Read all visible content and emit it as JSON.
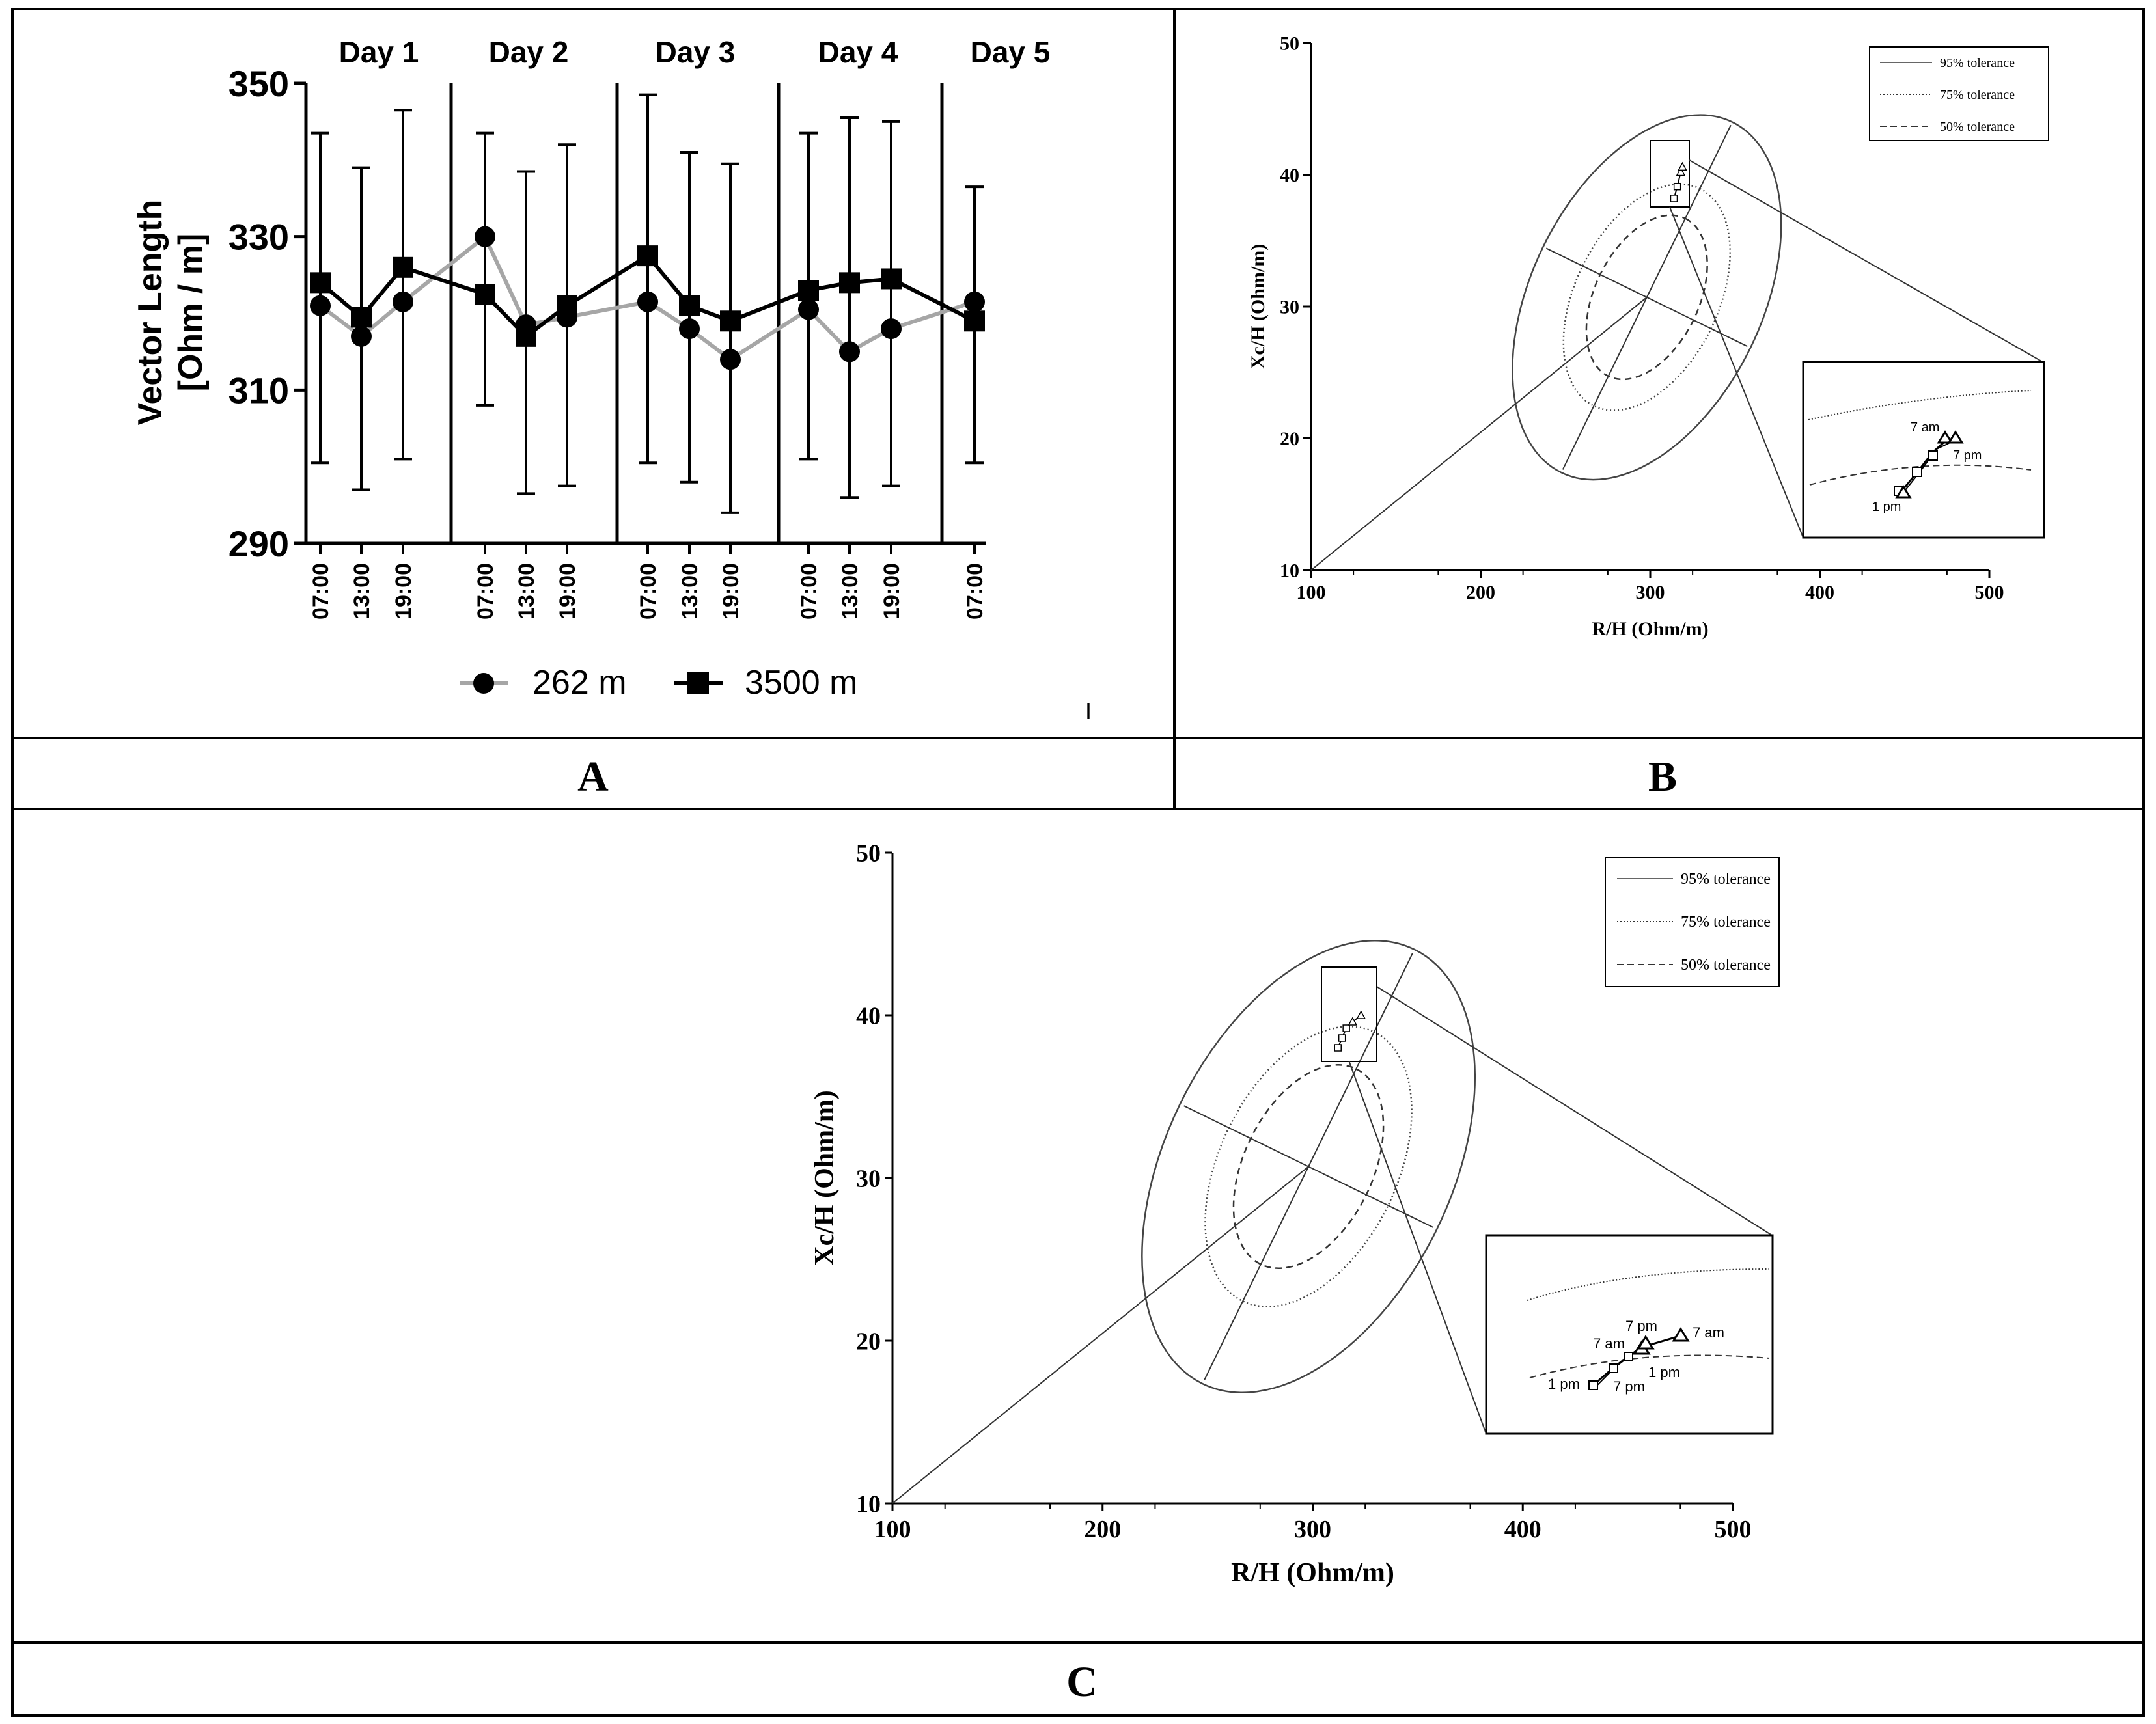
{
  "panels": {
    "a_label": "A",
    "b_label": "B",
    "c_label": "C"
  },
  "colors": {
    "series_262": "#a6a6a6",
    "series_3500": "#000000",
    "axis": "#000000",
    "ellipse": "#333333"
  },
  "chart_data": [
    {
      "id": "A",
      "type": "line",
      "ylabel_line1": "Vector Length",
      "ylabel_line2": "[Ohm / m]",
      "ylim": [
        290,
        350
      ],
      "yticks": [
        290,
        310,
        330,
        350
      ],
      "x": [
        "07:00",
        "13:00",
        "19:00",
        "07:00",
        "13:00",
        "19:00",
        "07:00",
        "13:00",
        "19:00",
        "07:00",
        "13:00",
        "19:00",
        "07:00"
      ],
      "days": [
        "Day 1",
        "Day 2",
        "Day 3",
        "Day 4",
        "Day 5"
      ],
      "series": [
        {
          "name": "262 m",
          "marker": "circle",
          "values": [
            321,
            317,
            321.5,
            330,
            318.5,
            319.5,
            321.5,
            318,
            314,
            320.5,
            315,
            318,
            321.5
          ]
        },
        {
          "name": "3500 m",
          "marker": "square",
          "values": [
            324,
            319.5,
            326,
            322.5,
            317,
            321,
            327.5,
            321,
            319,
            323,
            324,
            324.5,
            319
          ],
          "error_upper": [
            343.5,
            339,
            346.5,
            343.5,
            338.5,
            342,
            348.5,
            341,
            339.5,
            343.5,
            345.5,
            345,
            336.5
          ],
          "error_lower": [
            300.5,
            297,
            301,
            308,
            296.5,
            297.5,
            300.5,
            298,
            294,
            301,
            296,
            297.5,
            300.5
          ]
        }
      ],
      "legend": [
        "262 m",
        "3500 m"
      ],
      "stray_mark": "I"
    },
    {
      "id": "B",
      "type": "scatter",
      "xlabel": "R/H (Ohm/m)",
      "ylabel": "Xc/H (Ohm/m)",
      "xlim": [
        100,
        500
      ],
      "ylim": [
        10,
        50
      ],
      "xticks": [
        100,
        200,
        300,
        400,
        500
      ],
      "yticks": [
        10,
        20,
        30,
        40,
        50
      ],
      "legend": [
        "95% tolerance",
        "75% tolerance",
        "50% tolerance"
      ],
      "points": [
        {
          "r": 314,
          "xc": 38.2,
          "marker": "square"
        },
        {
          "r": 316,
          "xc": 39.1,
          "marker": "square"
        },
        {
          "r": 318,
          "xc": 40.2,
          "marker": "triangle"
        },
        {
          "r": 319,
          "xc": 40.6,
          "marker": "triangle"
        }
      ],
      "inset_labels": [
        "7 am",
        "7 pm",
        "1 pm"
      ]
    },
    {
      "id": "C",
      "type": "scatter",
      "xlabel": "R/H (Ohm/m)",
      "ylabel": "Xc/H (Ohm/m)",
      "xlim": [
        100,
        500
      ],
      "ylim": [
        10,
        50
      ],
      "xticks": [
        100,
        200,
        300,
        400,
        500
      ],
      "yticks": [
        10,
        20,
        30,
        40,
        50
      ],
      "legend": [
        "95% tolerance",
        "75% tolerance",
        "50% tolerance"
      ],
      "points": [
        {
          "r": 312,
          "xc": 38.0,
          "marker": "square"
        },
        {
          "r": 314,
          "xc": 38.6,
          "marker": "square"
        },
        {
          "r": 316,
          "xc": 39.2,
          "marker": "square"
        },
        {
          "r": 319,
          "xc": 39.6,
          "marker": "triangle"
        },
        {
          "r": 323,
          "xc": 40.0,
          "marker": "triangle"
        }
      ],
      "inset_labels": [
        "7 pm",
        "7 am",
        "7 am",
        "1 pm",
        "1 pm",
        "7 pm"
      ]
    }
  ]
}
